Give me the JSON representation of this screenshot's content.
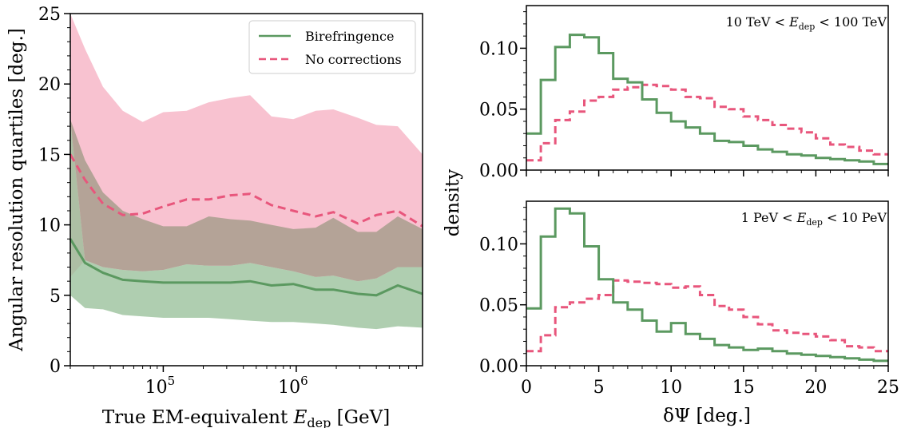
{
  "chart_data": [
    {
      "type": "area",
      "title": "",
      "xlabel": "True EM-equivalent E_dep [GeV]",
      "xlabel_main": "True EM-equivalent ",
      "xlabel_var": "E",
      "xlabel_sub": "dep",
      "xlabel_unit": " [GeV]",
      "ylabel": "Angular resolution quartiles [deg.]",
      "xscale": "log",
      "xlim": [
        20000,
        8900000
      ],
      "ylim": [
        0,
        25
      ],
      "x_ticks": [
        {
          "value": 100000,
          "base": "10",
          "exp": "5"
        },
        {
          "value": 1000000,
          "base": "10",
          "exp": "6"
        }
      ],
      "y_ticks": [
        0,
        5,
        10,
        15,
        20,
        25
      ],
      "legend_position": "top-right",
      "grid": false,
      "x": [
        20000,
        25800,
        35200,
        49600,
        70000,
        100000,
        150000,
        220000,
        320000,
        450000,
        650000,
        950000,
        1400000,
        1900000,
        2900000,
        4000000,
        5800000,
        8900000
      ],
      "series": [
        {
          "name": "Birefringence",
          "color": "#5b9960",
          "fill": "#94bd96",
          "linestyle": "solid",
          "median": [
            9.0,
            7.3,
            6.6,
            6.1,
            6.0,
            5.9,
            5.9,
            5.9,
            5.9,
            6.0,
            5.7,
            5.8,
            5.4,
            5.4,
            5.1,
            5.0,
            5.7,
            5.1
          ],
          "lower": [
            5.0,
            4.1,
            4.0,
            3.6,
            3.5,
            3.4,
            3.4,
            3.4,
            3.3,
            3.2,
            3.1,
            3.1,
            3.0,
            2.9,
            2.7,
            2.6,
            2.8,
            2.7
          ],
          "upper": [
            17.5,
            7.5,
            7.0,
            6.8,
            6.7,
            6.8,
            7.2,
            7.1,
            7.1,
            7.3,
            7.0,
            6.7,
            6.3,
            6.4,
            6.0,
            6.2,
            7.0,
            7.0
          ]
        },
        {
          "name": "No corrections",
          "color": "#e8567c",
          "fill": "#f8c2d0",
          "linestyle": "dashed",
          "median": [
            15.0,
            13.2,
            11.5,
            10.7,
            10.8,
            11.3,
            11.8,
            11.8,
            12.1,
            12.2,
            11.4,
            11.0,
            10.6,
            10.9,
            10.1,
            10.7,
            11.0,
            9.9
          ],
          "lower": [
            6.3,
            7.5,
            7.0,
            6.8,
            6.7,
            6.8,
            7.2,
            7.1,
            7.1,
            7.3,
            7.0,
            6.7,
            6.3,
            6.4,
            6.0,
            6.2,
            7.0,
            7.0
          ],
          "upper": [
            25.0,
            22.5,
            19.8,
            18.1,
            17.3,
            18.0,
            18.1,
            18.7,
            19.0,
            19.2,
            17.7,
            17.5,
            18.1,
            18.2,
            17.6,
            17.1,
            17.0,
            15.0
          ]
        }
      ]
    },
    {
      "type": "histogram",
      "title": "",
      "annotation": {
        "lo": "10 TeV < ",
        "var": "E",
        "sub": "dep",
        "hi": " < 100 TeV"
      },
      "xlabel": "",
      "ylabel": "density",
      "xlim": [
        0,
        25
      ],
      "ylim": [
        0,
        0.135
      ],
      "y_ticks": [
        0.0,
        0.05,
        0.1
      ],
      "y_tick_labels": [
        "0.00",
        "0.05",
        "0.10"
      ],
      "x_ticks": [
        0,
        5,
        10,
        15,
        20,
        25
      ],
      "bin_width": 1.0,
      "series": [
        {
          "name": "Birefringence",
          "color": "#5b9960",
          "linestyle": "solid",
          "values": [
            0.03,
            0.074,
            0.101,
            0.111,
            0.109,
            0.096,
            0.075,
            0.072,
            0.058,
            0.047,
            0.04,
            0.035,
            0.03,
            0.024,
            0.023,
            0.02,
            0.017,
            0.015,
            0.013,
            0.012,
            0.01,
            0.009,
            0.008,
            0.007,
            0.005
          ]
        },
        {
          "name": "No corrections",
          "color": "#e8567c",
          "linestyle": "dashed",
          "values": [
            0.008,
            0.022,
            0.041,
            0.048,
            0.057,
            0.06,
            0.066,
            0.068,
            0.07,
            0.069,
            0.066,
            0.06,
            0.059,
            0.052,
            0.05,
            0.044,
            0.041,
            0.037,
            0.034,
            0.031,
            0.026,
            0.021,
            0.019,
            0.016,
            0.013
          ]
        }
      ]
    },
    {
      "type": "histogram",
      "title": "",
      "annotation": {
        "lo": "1 PeV < ",
        "var": "E",
        "sub": "dep",
        "hi": " < 10 PeV"
      },
      "xlabel": "δΨ [deg.]",
      "ylabel": "density",
      "xlim": [
        0,
        25
      ],
      "ylim": [
        0,
        0.135
      ],
      "y_ticks": [
        0.0,
        0.05,
        0.1
      ],
      "y_tick_labels": [
        "0.00",
        "0.05",
        "0.10"
      ],
      "x_ticks": [
        0,
        5,
        10,
        15,
        20,
        25
      ],
      "bin_width": 1.0,
      "series": [
        {
          "name": "Birefringence",
          "color": "#5b9960",
          "linestyle": "solid",
          "values": [
            0.047,
            0.106,
            0.129,
            0.125,
            0.098,
            0.071,
            0.052,
            0.046,
            0.037,
            0.028,
            0.035,
            0.026,
            0.022,
            0.017,
            0.015,
            0.013,
            0.014,
            0.012,
            0.01,
            0.009,
            0.008,
            0.007,
            0.006,
            0.005,
            0.004
          ]
        },
        {
          "name": "No corrections",
          "color": "#e8567c",
          "linestyle": "dashed",
          "values": [
            0.012,
            0.025,
            0.048,
            0.052,
            0.055,
            0.058,
            0.07,
            0.069,
            0.068,
            0.067,
            0.064,
            0.065,
            0.058,
            0.049,
            0.046,
            0.04,
            0.034,
            0.029,
            0.027,
            0.026,
            0.024,
            0.021,
            0.016,
            0.015,
            0.012
          ]
        }
      ]
    }
  ]
}
